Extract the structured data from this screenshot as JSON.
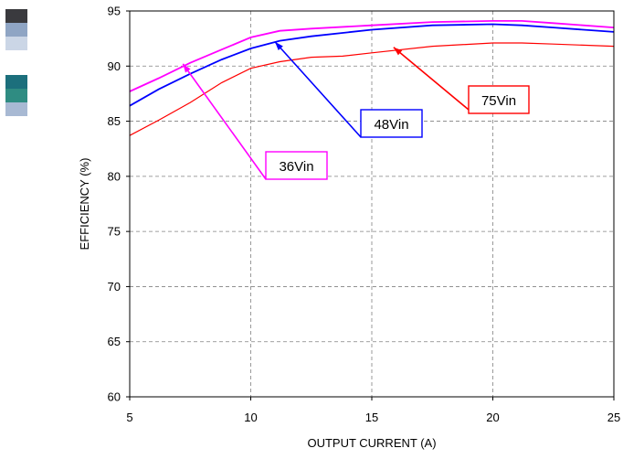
{
  "chart_data": {
    "type": "line",
    "xlabel": "OUTPUT CURRENT (A)",
    "ylabel": "EFFICIENCY (%)",
    "xlim": [
      5,
      25
    ],
    "ylim": [
      60,
      95
    ],
    "xticks": [
      5,
      10,
      15,
      20,
      25
    ],
    "yticks": [
      60,
      65,
      70,
      75,
      80,
      85,
      90,
      95
    ],
    "x_tick_labels": [
      "5",
      "10",
      "15",
      "20",
      "25"
    ],
    "y_tick_labels": [
      "60",
      "65",
      "70",
      "75",
      "80",
      "85",
      "90",
      "95"
    ],
    "grid": true,
    "series": [
      {
        "name": "36Vin",
        "color": "#ff00ff",
        "x": [
          5,
          6.2,
          7.5,
          8.8,
          10,
          11.2,
          12.5,
          15,
          17.5,
          20,
          21.2,
          22.5,
          25
        ],
        "y": [
          87.7,
          88.9,
          90.3,
          91.5,
          92.6,
          93.2,
          93.4,
          93.7,
          94.0,
          94.1,
          94.1,
          93.9,
          93.5
        ]
      },
      {
        "name": "48Vin",
        "color": "#0000ff",
        "x": [
          5,
          6.2,
          7.5,
          8.8,
          10,
          11.2,
          12.5,
          15,
          17.5,
          20,
          21.2,
          22.5,
          25
        ],
        "y": [
          86.4,
          87.9,
          89.3,
          90.6,
          91.6,
          92.3,
          92.7,
          93.3,
          93.7,
          93.8,
          93.7,
          93.5,
          93.1
        ]
      },
      {
        "name": "75Vin",
        "color": "#ff0000",
        "x": [
          5,
          6.2,
          7.5,
          8.8,
          10,
          11.2,
          12.5,
          13.8,
          15,
          17.5,
          20,
          21.2,
          22.5,
          25
        ],
        "y": [
          83.7,
          85.1,
          86.7,
          88.5,
          89.8,
          90.4,
          90.8,
          90.9,
          91.2,
          91.8,
          92.1,
          92.1,
          92.0,
          91.8
        ]
      }
    ],
    "annotations": [
      {
        "label": "36Vin",
        "color": "#ff00ff",
        "target": [
          7.2,
          90.2
        ]
      },
      {
        "label": "48Vin",
        "color": "#0000ff",
        "target": [
          11.0,
          92.2
        ]
      },
      {
        "label": "75Vin",
        "color": "#ff0000",
        "target": [
          15.9,
          91.7
        ]
      }
    ]
  },
  "legend_swatches": [
    {
      "colors": [
        "#3a3a3e",
        "#8fa5c4",
        "#cbd6e6"
      ]
    },
    {
      "colors": [
        "#1c6f7c",
        "#2f8c82",
        "#a8b9d3"
      ]
    }
  ]
}
